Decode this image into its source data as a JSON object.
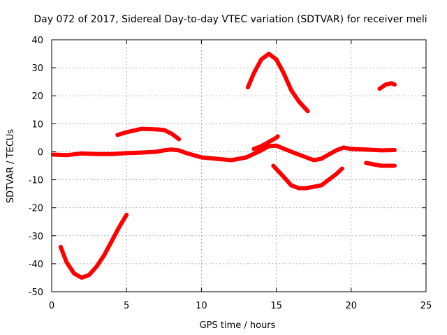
{
  "chart_data": {
    "type": "scatter",
    "title": "Day 072 of 2017, Sidereal Day-to-day VTEC variation (SDTVAR) for receiver meli",
    "xlabel": "GPS time / hours",
    "ylabel": "SDTVAR / TECUs",
    "xlim": [
      0,
      25
    ],
    "ylim": [
      -50,
      40
    ],
    "xticks": [
      0,
      5,
      10,
      15,
      20,
      25
    ],
    "yticks": [
      -50,
      -40,
      -30,
      -20,
      -10,
      0,
      10,
      20,
      30,
      40
    ],
    "grid": true,
    "series_color": "#ff0000",
    "series": [
      {
        "name": "baseline",
        "points": [
          [
            0.1,
            -1.0
          ],
          [
            1,
            -1.2
          ],
          [
            2,
            -0.6
          ],
          [
            3,
            -0.8
          ],
          [
            4,
            -0.8
          ],
          [
            5,
            -0.5
          ],
          [
            6,
            -0.3
          ],
          [
            7,
            0.0
          ],
          [
            7.5,
            0.5
          ],
          [
            8,
            0.8
          ],
          [
            8.5,
            0.5
          ],
          [
            9,
            -0.5
          ],
          [
            10,
            -2.0
          ],
          [
            11,
            -2.5
          ],
          [
            12,
            -3.0
          ],
          [
            13,
            -2.0
          ],
          [
            14,
            0.5
          ],
          [
            14.5,
            2.0
          ],
          [
            15,
            2.2
          ],
          [
            16,
            0.0
          ],
          [
            17,
            -2.0
          ],
          [
            17.5,
            -3.0
          ],
          [
            18,
            -2.5
          ],
          [
            19,
            0.5
          ],
          [
            19.5,
            1.5
          ],
          [
            20,
            1.0
          ],
          [
            21,
            0.8
          ],
          [
            22,
            0.5
          ],
          [
            22.9,
            0.6
          ]
        ]
      },
      {
        "name": "segment-1",
        "points": [
          [
            0.6,
            -34.0
          ],
          [
            1,
            -39.5
          ],
          [
            1.5,
            -43.5
          ],
          [
            2,
            -45.0
          ],
          [
            2.5,
            -44.0
          ],
          [
            3,
            -41.0
          ],
          [
            3.5,
            -37.0
          ],
          [
            4,
            -32.0
          ],
          [
            4.5,
            -27.0
          ],
          [
            5,
            -22.5
          ]
        ]
      },
      {
        "name": "segment-2",
        "points": [
          [
            4.4,
            6.0
          ],
          [
            5,
            7.0
          ],
          [
            6,
            8.2
          ],
          [
            7,
            8.0
          ],
          [
            7.5,
            7.8
          ],
          [
            8,
            6.5
          ],
          [
            8.5,
            4.5
          ]
        ]
      },
      {
        "name": "segment-3",
        "points": [
          [
            13.1,
            23.0
          ],
          [
            13.5,
            28.0
          ],
          [
            14,
            33.0
          ],
          [
            14.5,
            35.0
          ],
          [
            15,
            33.0
          ],
          [
            15.5,
            28.0
          ],
          [
            16,
            22.0
          ],
          [
            16.5,
            18.0
          ],
          [
            17.1,
            14.5
          ]
        ]
      },
      {
        "name": "segment-4",
        "points": [
          [
            13.5,
            1.0
          ],
          [
            14,
            2.0
          ],
          [
            14.5,
            3.5
          ],
          [
            15,
            5.0
          ],
          [
            15.1,
            5.5
          ]
        ]
      },
      {
        "name": "segment-5",
        "points": [
          [
            14.8,
            -5.0
          ],
          [
            15.5,
            -9.0
          ],
          [
            16,
            -12.0
          ],
          [
            16.5,
            -13.0
          ],
          [
            17,
            -13.0
          ],
          [
            17.5,
            -12.5
          ],
          [
            18,
            -12.0
          ],
          [
            18.5,
            -10.0
          ],
          [
            19,
            -8.0
          ],
          [
            19.4,
            -6.0
          ]
        ]
      },
      {
        "name": "segment-6",
        "points": [
          [
            21,
            -4.0
          ],
          [
            21.5,
            -4.5
          ],
          [
            22,
            -5.0
          ],
          [
            22.5,
            -5.0
          ],
          [
            22.9,
            -5.0
          ]
        ]
      },
      {
        "name": "segment-7",
        "points": [
          [
            21.9,
            22.5
          ],
          [
            22.3,
            24.0
          ],
          [
            22.7,
            24.5
          ],
          [
            22.9,
            24.0
          ]
        ]
      }
    ]
  }
}
